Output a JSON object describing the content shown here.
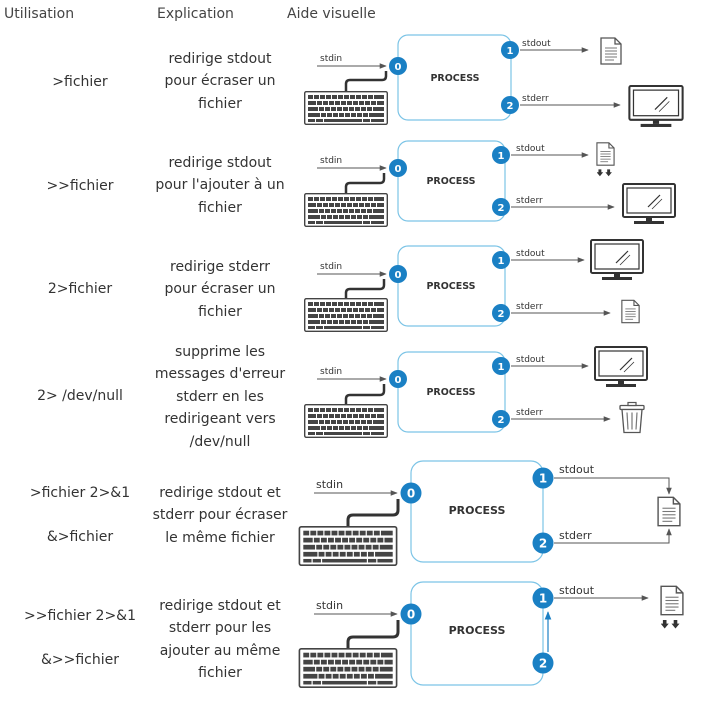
{
  "headers": {
    "usage": "Utilisation",
    "explanation": "Explication",
    "visual": "Aide visuelle"
  },
  "labels": {
    "stdin": "stdin",
    "stdout": "stdout",
    "stderr": "stderr",
    "process": "PROCESS",
    "fd0": "0",
    "fd1": "1",
    "fd2": "2"
  },
  "rows": [
    {
      "usage": [
        ">fichier"
      ],
      "explanation": [
        "redirige stdout",
        "pour écraser un",
        "fichier"
      ]
    },
    {
      "usage": [
        ">>fichier"
      ],
      "explanation": [
        "redirige stdout",
        "pour l'ajouter à un",
        "fichier"
      ]
    },
    {
      "usage": [
        "2>fichier"
      ],
      "explanation": [
        "redirige stderr",
        "pour écraser un",
        "fichier"
      ]
    },
    {
      "usage": [
        "2> /dev/null"
      ],
      "explanation": [
        "supprime les",
        "messages d'erreur",
        "stderr en les",
        "redirigeant vers",
        "/dev/null"
      ]
    },
    {
      "usage": [
        ">fichier  2>&1",
        "&>fichier"
      ],
      "explanation": [
        "redirige stdout et",
        "stderr pour écraser",
        "le même fichier"
      ]
    },
    {
      "usage": [
        ">>fichier  2>&1",
        "&>>fichier"
      ],
      "explanation": [
        "redirige stdout et",
        "stderr pour les",
        "ajouter au même",
        "fichier"
      ]
    }
  ],
  "colors": {
    "accent": "#1a80c4",
    "box_border": "#7cc4e6",
    "line": "#555555",
    "text": "#333333"
  },
  "icons": {
    "file": "file-icon",
    "append": "append-arrows-icon",
    "monitor": "monitor-icon",
    "trash": "trash-icon",
    "keyboard": "keyboard-icon"
  }
}
